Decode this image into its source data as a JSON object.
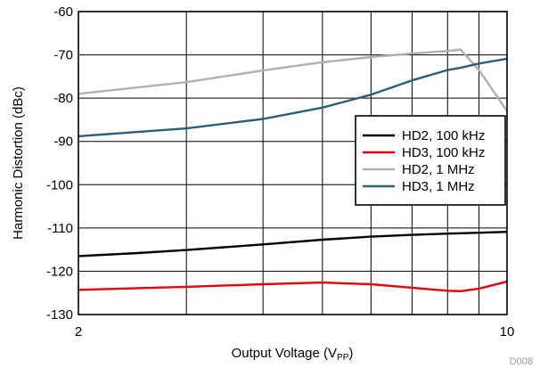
{
  "chart_data": {
    "type": "line",
    "xscale": "log",
    "xlim": [
      2,
      10
    ],
    "ylim": [
      -130,
      -60
    ],
    "grid": true,
    "legend_position": "middle-right",
    "xlabel": "Output Voltage (V",
    "xlabel_subscript": "PP",
    "xlabel_close": ")",
    "ylabel": "Harmonic Distortion (dBc)",
    "x_tick_labels": [
      {
        "value": 2,
        "label": "2"
      },
      {
        "value": 10,
        "label": "10"
      }
    ],
    "x_minor_gridlines": [
      3,
      4,
      5,
      6,
      7,
      8,
      9
    ],
    "y_ticks": [
      {
        "value": -60,
        "label": "-60"
      },
      {
        "value": -70,
        "label": "-70"
      },
      {
        "value": -80,
        "label": "-80"
      },
      {
        "value": -90,
        "label": "-90"
      },
      {
        "value": -100,
        "label": "-100"
      },
      {
        "value": -110,
        "label": "-110"
      },
      {
        "value": -120,
        "label": "-120"
      },
      {
        "value": -130,
        "label": "-130"
      }
    ],
    "series": [
      {
        "name": "HD2, 100 kHz",
        "color": "#000000",
        "x": [
          2,
          2.5,
          3,
          4,
          5,
          6,
          7,
          8,
          9,
          10
        ],
        "y": [
          -116.5,
          -115.8,
          -115.1,
          -113.8,
          -112.7,
          -112.0,
          -111.6,
          -111.3,
          -111.1,
          -110.9
        ]
      },
      {
        "name": "HD3, 100 kHz",
        "color": "#e8000b",
        "x": [
          2,
          3,
          4,
          5,
          6,
          7,
          8,
          8.4,
          9,
          10
        ],
        "y": [
          -124.3,
          -123.6,
          -123.0,
          -122.6,
          -123.0,
          -123.8,
          -124.5,
          -124.6,
          -124.0,
          -122.4
        ]
      },
      {
        "name": "HD2, 1 MHz",
        "color": "#b0b0b0",
        "x": [
          2,
          3,
          4,
          5,
          6,
          7,
          8,
          8.4,
          9,
          10
        ],
        "y": [
          -79.0,
          -76.3,
          -73.6,
          -71.7,
          -70.5,
          -69.7,
          -69.1,
          -68.8,
          -73.5,
          -83.0
        ]
      },
      {
        "name": "HD3, 1 MHz",
        "color": "#2b5f75",
        "x": [
          2,
          3,
          4,
          5,
          6,
          7,
          8,
          8.4,
          9,
          10
        ],
        "y": [
          -88.8,
          -87.0,
          -84.8,
          -82.2,
          -79.2,
          -75.9,
          -73.5,
          -73.0,
          -72.0,
          -70.9
        ]
      }
    ]
  },
  "watermark": "D008"
}
